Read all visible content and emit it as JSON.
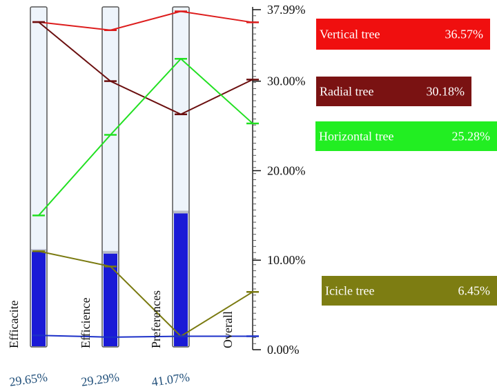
{
  "chart_data": {
    "type": "line",
    "title": "",
    "ylim": [
      0,
      37.99
    ],
    "axis": {
      "tick_labels": [
        "37.99%",
        "30.00%",
        "20.00%",
        "10.00%",
        "0.00%"
      ],
      "tick_values": [
        37.99,
        30.0,
        20.0,
        10.0,
        0.0
      ]
    },
    "criteria": [
      {
        "name": "Efficacite",
        "weight_label": "29.65%",
        "bar_level": 11.0
      },
      {
        "name": "Efficience",
        "weight_label": "29.29%",
        "bar_level": 10.8
      },
      {
        "name": "Preferences",
        "weight_label": "41.07%",
        "bar_level": 15.3
      },
      {
        "name": "Overall",
        "weight_label": "",
        "bar_level": null
      }
    ],
    "series": [
      {
        "name": "Vertical tree",
        "value_label": "36.57%",
        "color": "#dd1c1c",
        "fill": "#f00f0f",
        "text_color": "#ffffff",
        "values": [
          36.6,
          35.7,
          37.8,
          36.57
        ]
      },
      {
        "name": "Radial tree",
        "value_label": "30.18%",
        "color": "#6b0f0f",
        "fill": "#7a1212",
        "text_color": "#ffffff",
        "values": [
          36.6,
          30.0,
          26.3,
          30.18
        ]
      },
      {
        "name": "Horizontal tree",
        "value_label": "25.28%",
        "color": "#22e022",
        "fill": "#22ee22",
        "text_color": "#ffffff",
        "values": [
          15.0,
          24.0,
          32.5,
          25.28
        ]
      },
      {
        "name": "Icicle tree",
        "value_label": "6.45%",
        "color": "#7a7a10",
        "fill": "#7d7d12",
        "text_color": "#ffffff",
        "values": [
          11.0,
          9.3,
          1.5,
          6.45
        ]
      },
      {
        "name": "",
        "value_label": "",
        "color": "#1b2fc8",
        "fill": "",
        "text_color": "",
        "values": [
          1.6,
          1.4,
          1.5,
          1.5
        ]
      }
    ]
  }
}
